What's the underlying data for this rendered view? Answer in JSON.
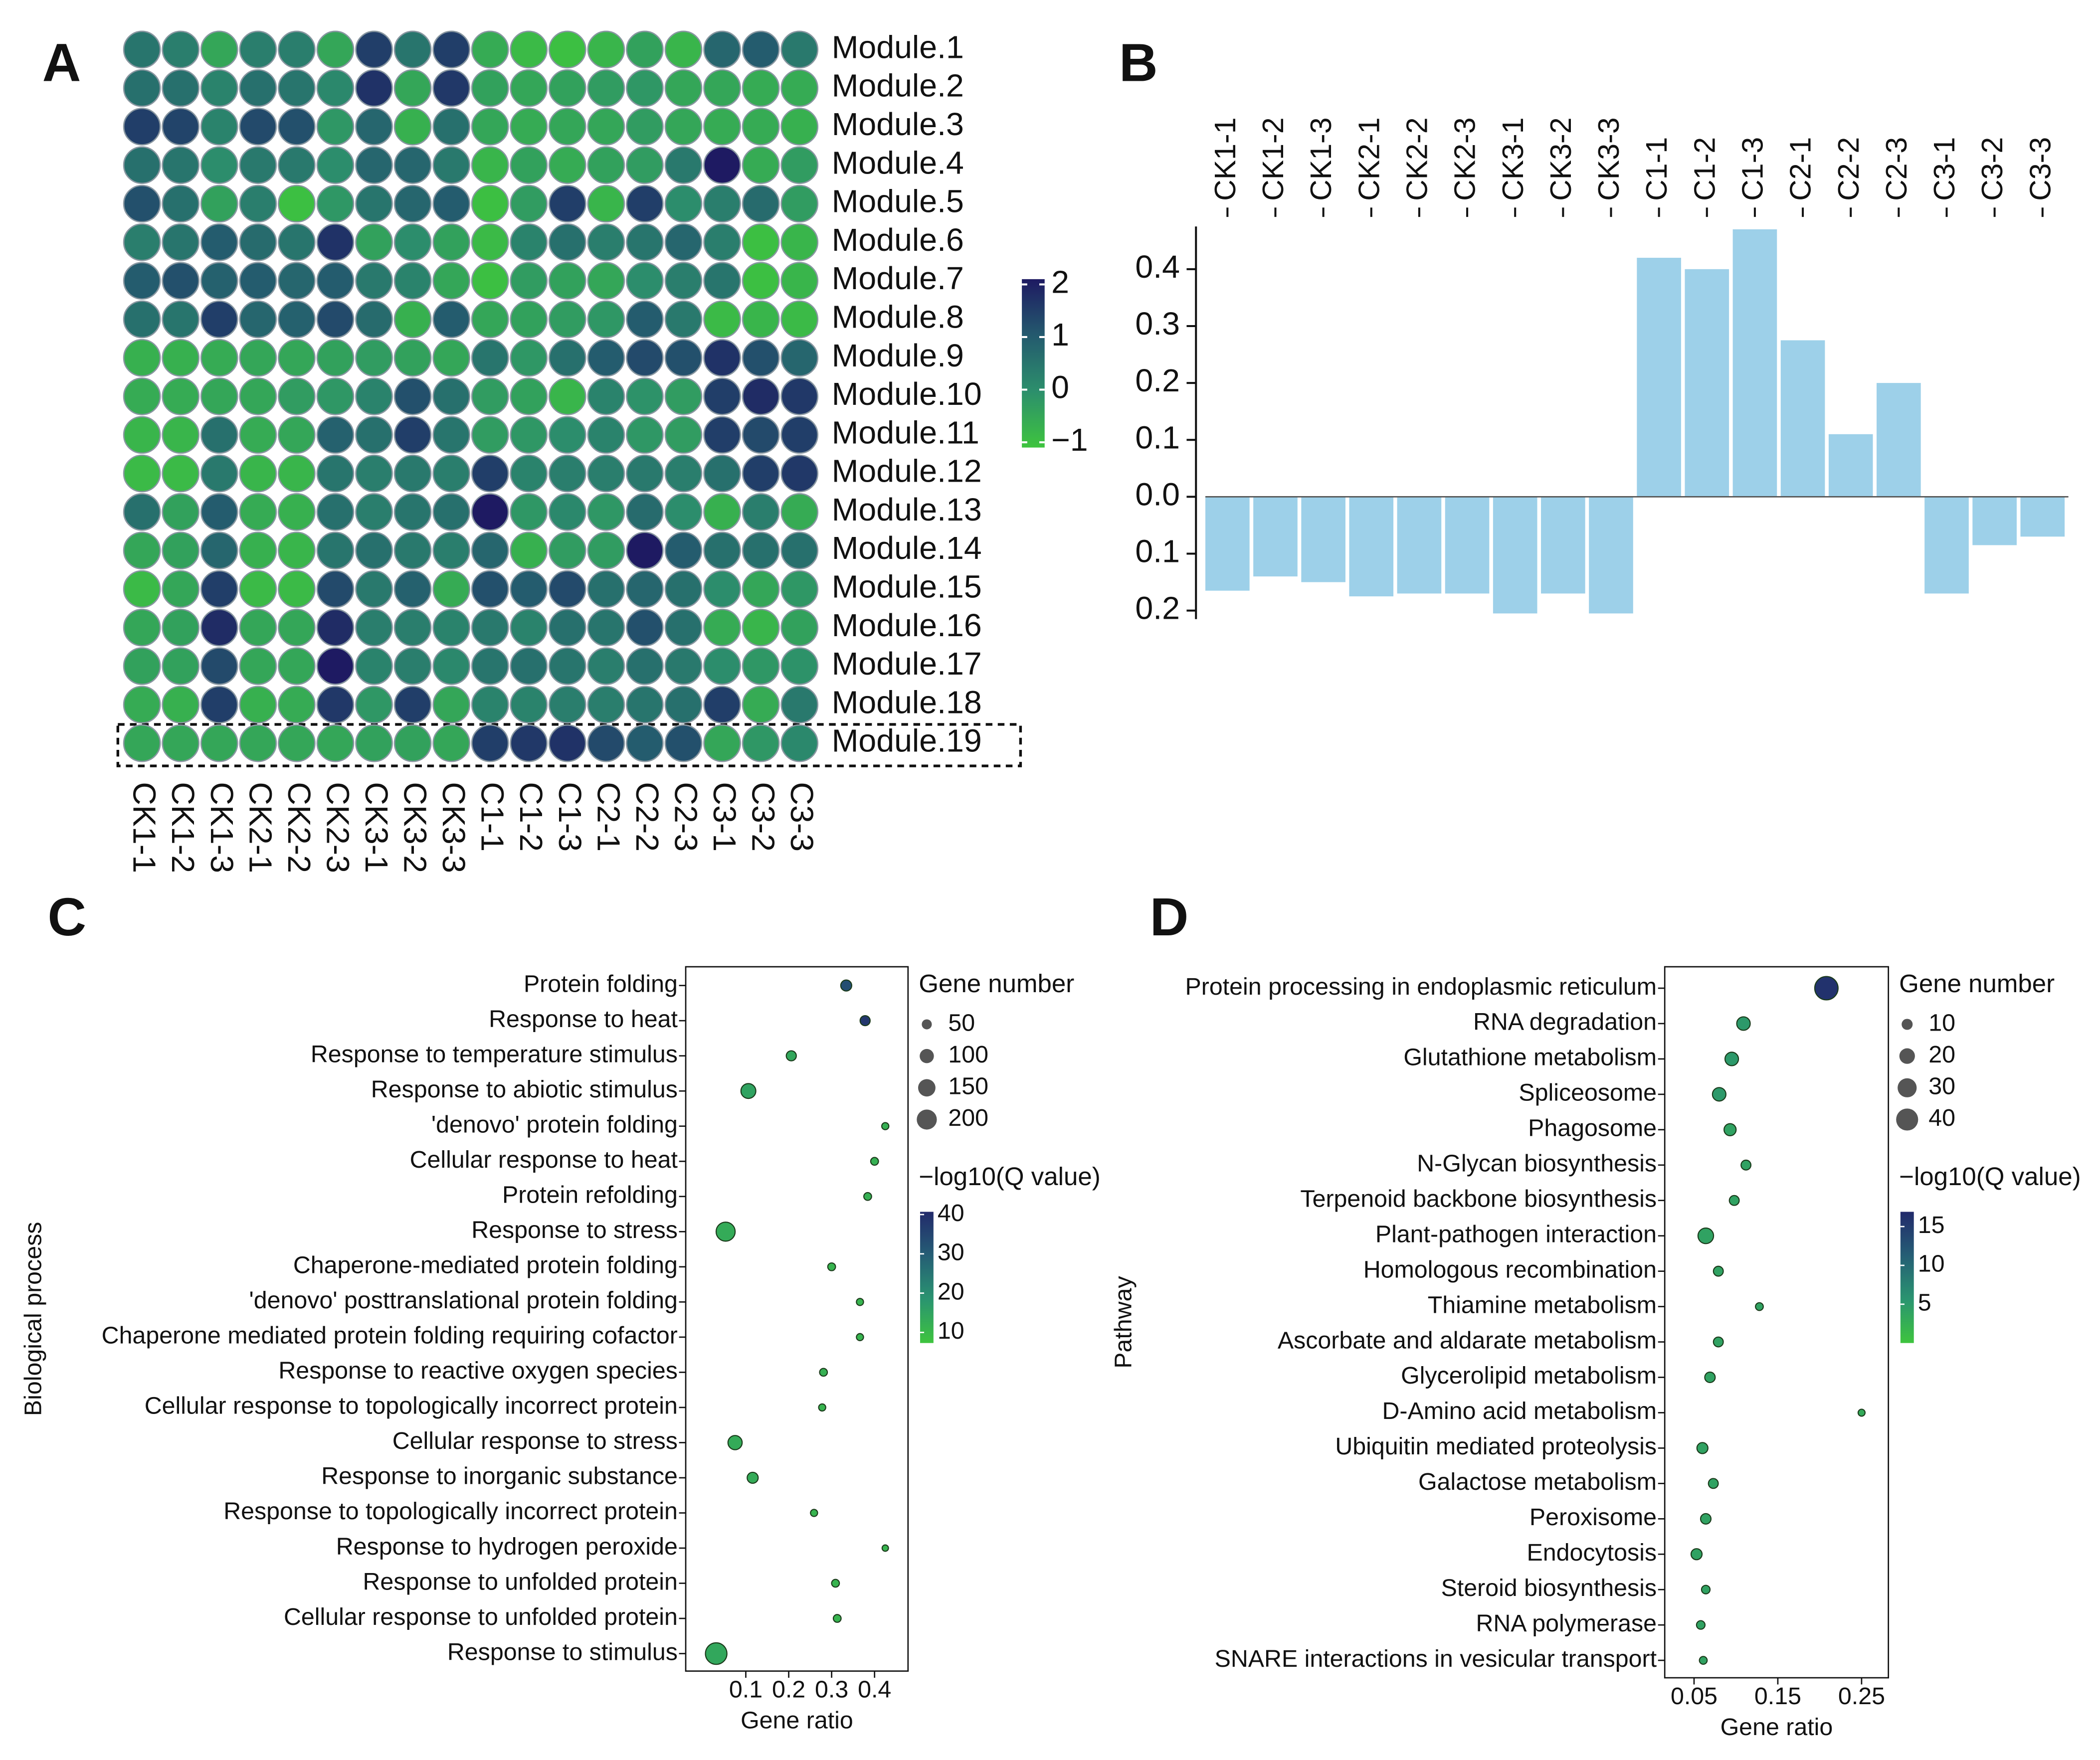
{
  "chart_data": [
    {
      "type": "heatmap",
      "panel": "A",
      "rows": [
        "Module.1",
        "Module.2",
        "Module.3",
        "Module.4",
        "Module.5",
        "Module.6",
        "Module.7",
        "Module.8",
        "Module.9",
        "Module.10",
        "Module.11",
        "Module.12",
        "Module.13",
        "Module.14",
        "Module.15",
        "Module.16",
        "Module.17",
        "Module.18",
        "Module.19"
      ],
      "columns": [
        "CK1-1",
        "CK1-2",
        "CK1-3",
        "CK2-1",
        "CK2-2",
        "CK2-3",
        "CK3-1",
        "CK3-2",
        "CK3-3",
        "C1-1",
        "C1-2",
        "C1-3",
        "C2-1",
        "C2-2",
        "C2-3",
        "C3-1",
        "C3-2",
        "C3-3"
      ],
      "values": [
        [
          0.5,
          0.3,
          -0.5,
          0.3,
          0.3,
          -0.5,
          1.5,
          0.5,
          1.5,
          -0.6,
          -0.9,
          -1,
          -0.8,
          -0.4,
          -0.8,
          0.8,
          1,
          0.4
        ],
        [
          0.6,
          0.6,
          0.2,
          0.6,
          0.5,
          0.1,
          1.7,
          -0.5,
          1.6,
          -0.4,
          -0.5,
          -0.4,
          -0.3,
          -0.2,
          -0.5,
          -0.5,
          -0.6,
          -0.6
        ],
        [
          1.5,
          1.4,
          0.2,
          1.3,
          1.2,
          -0.2,
          0.8,
          -0.7,
          0.6,
          -0.5,
          -0.6,
          -0.5,
          -0.5,
          -0.3,
          -0.5,
          -0.6,
          -0.6,
          -0.7
        ],
        [
          0.6,
          0.5,
          0,
          0.4,
          0.4,
          0,
          0.8,
          0.8,
          0.4,
          -0.8,
          -0.4,
          -0.6,
          -0.4,
          -0.3,
          0.4,
          2.1,
          -0.6,
          -0.3
        ],
        [
          1.2,
          0.6,
          -0.4,
          0.3,
          -1,
          -0.2,
          0.5,
          0.8,
          1,
          -1,
          -0.3,
          1.5,
          -0.8,
          1.5,
          0,
          0.3,
          0.7,
          -0.3
        ],
        [
          0.3,
          0.5,
          1,
          0.7,
          0.5,
          1.7,
          -0.4,
          0,
          -0.4,
          -0.9,
          0.2,
          0.6,
          0.3,
          0.5,
          0.8,
          0.3,
          -1,
          -0.8
        ],
        [
          1,
          1.2,
          0.9,
          1,
          0.8,
          1,
          0.4,
          0.2,
          -0.5,
          -1,
          -0.3,
          -0.4,
          -0.5,
          0,
          0.3,
          0.5,
          -1,
          -0.8
        ],
        [
          0.6,
          0.5,
          1.5,
          0.8,
          0.9,
          1.3,
          0.7,
          -0.7,
          1,
          -0.5,
          -0.4,
          -0.3,
          -0.2,
          1,
          0.4,
          -0.9,
          -0.8,
          -0.9
        ],
        [
          -0.7,
          -0.7,
          -0.6,
          -0.5,
          -0.5,
          -0.4,
          -0.3,
          -0.4,
          -0.5,
          0.5,
          -0.2,
          0.6,
          1,
          1.3,
          1.2,
          1.7,
          1.2,
          0.8
        ],
        [
          -0.6,
          -0.6,
          -0.5,
          -0.5,
          -0.3,
          -0.2,
          0.2,
          1.2,
          0.6,
          -0.3,
          -0.4,
          -0.8,
          0.2,
          -0.1,
          -0.3,
          1.5,
          1.8,
          1.6
        ],
        [
          -0.8,
          -0.8,
          0.6,
          -0.6,
          -0.5,
          0.9,
          0.6,
          1.5,
          0.5,
          -0.3,
          -0.2,
          0,
          0.2,
          -0.2,
          -0.3,
          1.5,
          1.3,
          1.5
        ],
        [
          -0.9,
          -0.9,
          0.4,
          -0.8,
          -0.8,
          0.5,
          0.3,
          0.4,
          0.3,
          1.5,
          0.2,
          0.3,
          0.3,
          0.4,
          0.3,
          0.6,
          1.5,
          1.6
        ],
        [
          0.6,
          -0.4,
          1,
          -0.6,
          -0.7,
          0.6,
          0.3,
          0.5,
          0.6,
          2.1,
          -0.2,
          0.1,
          -0.2,
          0.7,
          0,
          -0.7,
          0.3,
          -0.6
        ],
        [
          -0.5,
          -0.4,
          0.8,
          -0.7,
          -0.8,
          0.5,
          0.6,
          0.4,
          0.3,
          0.8,
          -0.7,
          -0.3,
          -0.3,
          2.1,
          1,
          0.6,
          0.6,
          0.6
        ],
        [
          -0.9,
          -0.5,
          1.5,
          -0.9,
          -0.9,
          1.3,
          0.4,
          0.9,
          -0.6,
          1.2,
          1,
          1.3,
          0.6,
          0.8,
          0.6,
          0,
          -0.5,
          -0.2
        ],
        [
          -0.5,
          -0.4,
          1.8,
          -0.5,
          -0.5,
          1.8,
          0.3,
          0.3,
          0.2,
          0.4,
          0.2,
          0.6,
          0.5,
          1.2,
          0.6,
          -0.6,
          -0.8,
          -0.4
        ],
        [
          -0.4,
          -0.4,
          1.3,
          -0.5,
          -0.5,
          2.1,
          0.2,
          0.3,
          0.1,
          0.5,
          0.6,
          0.5,
          0.3,
          0.6,
          0.4,
          0,
          -0.2,
          -0.1
        ],
        [
          -0.6,
          -0.7,
          1.5,
          -0.7,
          -0.6,
          1.6,
          -0.2,
          1.5,
          -0.5,
          0.2,
          0.2,
          0.3,
          0.3,
          0.5,
          0.6,
          1.5,
          -0.6,
          0.4
        ],
        [
          -0.5,
          -0.5,
          -0.5,
          -0.5,
          -0.5,
          -0.5,
          -0.4,
          -0.4,
          -0.5,
          1.5,
          1.6,
          1.7,
          1.3,
          1,
          1.2,
          -0.5,
          -0.2,
          0.1
        ]
      ],
      "clim": [
        -1.1,
        2.1
      ],
      "colorscale": [
        "#3ec43e",
        "#2c8f6c",
        "#245a6e",
        "#1e1a62"
      ],
      "cticks": [
        2,
        1,
        0,
        {
          "value": -1,
          "label": "−1"
        }
      ]
    },
    {
      "type": "bar",
      "panel": "B",
      "categories": [
        "CK1-1",
        "CK1-2",
        "CK1-3",
        "CK2-1",
        "CK2-2",
        "CK2-3",
        "CK3-1",
        "CK3-2",
        "CK3-3",
        "C1-1",
        "C1-2",
        "C1-3",
        "C2-1",
        "C2-2",
        "C2-3",
        "C3-1",
        "C3-2",
        "C3-3"
      ],
      "values": [
        -0.165,
        -0.14,
        -0.15,
        -0.175,
        -0.17,
        -0.17,
        -0.205,
        -0.17,
        -0.205,
        0.42,
        0.4,
        0.47,
        0.275,
        0.11,
        0.2,
        -0.17,
        -0.085,
        -0.07
      ],
      "color": "#9dd0e9",
      "ylim": [
        -0.215,
        0.475
      ],
      "yticks": [
        0.4,
        0.3,
        0.2,
        0.1,
        {
          "value": 0,
          "label": "0.0"
        },
        {
          "value": -0.1,
          "label": "0.1"
        },
        {
          "value": -0.2,
          "label": "0.2"
        }
      ]
    },
    {
      "type": "dot",
      "panel": "C",
      "ylabel": "Biological process",
      "xlabel": "Gene ratio",
      "categories": [
        "Protein folding",
        "Response to heat",
        "Response to temperature stimulus",
        "Response to abiotic stimulus",
        "'denovo' protein folding",
        "Cellular response to heat",
        "Protein refolding",
        "Response to stress",
        "Chaperone-mediated protein folding",
        "'denovo' posttranslational protein folding",
        "Chaperone mediated protein folding requiring cofactor",
        "Response to reactive oxygen species",
        "Cellular response to topologically incorrect protein",
        "Cellular response to stress",
        "Response to inorganic substance",
        "Response to topologically incorrect protein",
        "Response to hydrogen peroxide",
        "Response to unfolded protein",
        "Cellular response to unfolded protein",
        "Response to stimulus"
      ],
      "x": [
        0.334,
        0.378,
        0.206,
        0.106,
        0.425,
        0.4,
        0.384,
        0.053,
        0.3,
        0.366,
        0.366,
        0.281,
        0.278,
        0.075,
        0.116,
        0.259,
        0.425,
        0.309,
        0.313,
        0.031
      ],
      "sizes": [
        60,
        50,
        50,
        110,
        25,
        30,
        30,
        180,
        30,
        25,
        25,
        30,
        25,
        100,
        60,
        25,
        20,
        30,
        30,
        230
      ],
      "qvalues": [
        33,
        38,
        14,
        15,
        12,
        12,
        12,
        13,
        11,
        11,
        11,
        12,
        11,
        13,
        13,
        11,
        11,
        11,
        11,
        14
      ],
      "xlim": [
        -0.04,
        0.478
      ],
      "xticks": [
        0.1,
        0.2,
        0.3,
        0.4
      ],
      "size_title": "Gene number",
      "size_ticks": [
        50,
        100,
        150,
        200
      ],
      "color_title": "−log10(Q value)",
      "clim": [
        7.3,
        40.7
      ],
      "cticks": [
        40,
        30,
        20,
        10
      ],
      "colorscale": [
        "#3ec43e",
        "#2a9470",
        "#255e75",
        "#222a6b"
      ]
    },
    {
      "type": "dot",
      "panel": "D",
      "ylabel": "Pathway",
      "xlabel": "Gene ratio",
      "categories": [
        "Protein processing in endoplasmic reticulum",
        "RNA degradation",
        "Glutathione metabolism",
        "Spliceosome",
        "Phagosome",
        "N-Glycan biosynthesis",
        "Terpenoid backbone biosynthesis",
        "Plant-pathogen interaction",
        "Homologous recombination",
        "Thiamine metabolism",
        "Ascorbate and aldarate metabolism",
        "Glycerolipid metabolism",
        "D-Amino acid metabolism",
        "Ubiquitin mediated proteolysis",
        "Galactose metabolism",
        "Peroxisome",
        "Endocytosis",
        "Steroid biosynthesis",
        "RNA polymerase",
        "SNARE interactions in vesicular transport"
      ],
      "x": [
        0.208,
        0.109,
        0.095,
        0.08,
        0.093,
        0.112,
        0.098,
        0.064,
        0.079,
        0.128,
        0.079,
        0.069,
        0.25,
        0.06,
        0.073,
        0.064,
        0.053,
        0.064,
        0.058,
        0.061
      ],
      "sizes": [
        45,
        15,
        15,
        15,
        12,
        8,
        8,
        20,
        8,
        5,
        8,
        9,
        4,
        10,
        8,
        9,
        10,
        6,
        6,
        5
      ],
      "qvalues": [
        16,
        5,
        5,
        5,
        4,
        4,
        4,
        4,
        4,
        4,
        4,
        4,
        3,
        4,
        4,
        4,
        4,
        4,
        4,
        4
      ],
      "xlim": [
        0.015,
        0.282
      ],
      "xticks": [
        0.05,
        0.15,
        0.25
      ],
      "size_title": "Gene number",
      "size_ticks": [
        10,
        20,
        30,
        40
      ],
      "color_title": "−log10(Q value)",
      "clim": [
        0,
        16.9
      ],
      "cticks": [
        15,
        10,
        5
      ],
      "colorscale": [
        "#3ec43e",
        "#2a9470",
        "#255e75",
        "#222a6b"
      ]
    }
  ]
}
